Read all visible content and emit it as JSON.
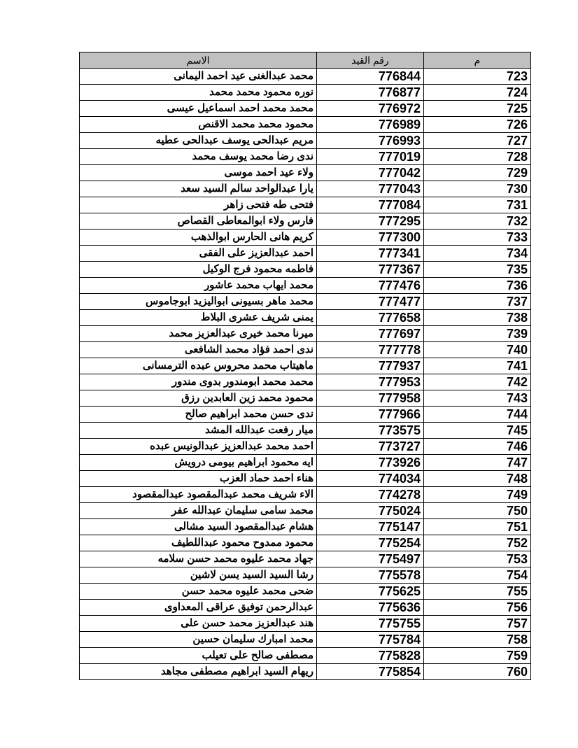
{
  "table": {
    "headers": {
      "name": "الاسم",
      "id": "رقم القيد",
      "serial": "م"
    },
    "header_color": "#c0c0c0",
    "rows": [
      {
        "name": "محمد عبدالغنى عيد احمد اليمانى",
        "id": "776844",
        "serial": "723"
      },
      {
        "name": "نوره محمود محمد محمد",
        "id": "776877",
        "serial": "724"
      },
      {
        "name": "محمد محمد احمد اسماعيل عيسى",
        "id": "776972",
        "serial": "725"
      },
      {
        "name": "محمود محمد محمد الاقنص",
        "id": "776989",
        "serial": "726"
      },
      {
        "name": "مريم عبدالحى يوسف عبدالحى عطيه",
        "id": "776993",
        "serial": "727"
      },
      {
        "name": "ندى رضا محمد يوسف محمد",
        "id": "777019",
        "serial": "728"
      },
      {
        "name": "ولاء عيد احمد موسى",
        "id": "777042",
        "serial": "729"
      },
      {
        "name": "يارا عبدالواحد سالم السيد سعد",
        "id": "777043",
        "serial": "730"
      },
      {
        "name": "فتحى طه فتحى زاهر",
        "id": "777084",
        "serial": "731"
      },
      {
        "name": "فارس ولاء ابوالمعاطى القصاص",
        "id": "777295",
        "serial": "732"
      },
      {
        "name": "كريم هانى الحارس ابوالذهب",
        "id": "777300",
        "serial": "733"
      },
      {
        "name": "احمد عبدالعزيز على الفقى",
        "id": "777341",
        "serial": "734"
      },
      {
        "name": "فاطمه محمود فرج الوكيل",
        "id": "777367",
        "serial": "735"
      },
      {
        "name": "محمد ايهاب محمد عاشور",
        "id": "777476",
        "serial": "736"
      },
      {
        "name": "محمد ماهر بسيونى ابواليزيد ابوجاموس",
        "id": "777477",
        "serial": "737"
      },
      {
        "name": "يمنى شريف عشرى البلاط",
        "id": "777658",
        "serial": "738"
      },
      {
        "name": "ميرنا محمد خيرى عبدالعزيز محمد",
        "id": "777697",
        "serial": "739"
      },
      {
        "name": "ندى احمد فؤاد محمد الشافعى",
        "id": "777778",
        "serial": "740"
      },
      {
        "name": "ماهيتاب محمد محروس عبده الترمسانى",
        "id": "777937",
        "serial": "741"
      },
      {
        "name": "محمد محمد ابومندور بدوى  مندور",
        "id": "777953",
        "serial": "742"
      },
      {
        "name": "محمود محمد زين العابدين رزق",
        "id": "777958",
        "serial": "743"
      },
      {
        "name": "ندى حسن محمد ابراهيم صالح",
        "id": "777966",
        "serial": "744"
      },
      {
        "name": "ميار رفعت عبدالله المشد",
        "id": "773575",
        "serial": "745"
      },
      {
        "name": "احمد محمد عبدالعزيز عبدالونيس عبده",
        "id": "773727",
        "serial": "746"
      },
      {
        "name": "ايه محمود ابراهيم بيومى درويش",
        "id": "773926",
        "serial": "747"
      },
      {
        "name": "هناء احمد حماد العزب",
        "id": "774034",
        "serial": "748"
      },
      {
        "name": "الاء شريف محمد عبدالمقصود عبدالمقصود",
        "id": "774278",
        "serial": "749"
      },
      {
        "name": "محمد سامى سليمان عبدالله عفر",
        "id": "775024",
        "serial": "750"
      },
      {
        "name": "هشام عبدالمقصود السيد مشالى",
        "id": "775147",
        "serial": "751"
      },
      {
        "name": "محمود ممدوح محمود عبداللطيف",
        "id": "775254",
        "serial": "752"
      },
      {
        "name": "جهاد محمد عليوه محمد حسن سلامه",
        "id": "775497",
        "serial": "753"
      },
      {
        "name": "رشا السيد السيد يسن لاشين",
        "id": "775578",
        "serial": "754"
      },
      {
        "name": "ضحى محمد عليوه محمد حسن",
        "id": "775625",
        "serial": "755"
      },
      {
        "name": "عبدالرحمن توفيق عراقى المعداوى",
        "id": "775636",
        "serial": "756"
      },
      {
        "name": "هند عبدالعزيز محمد حسن على",
        "id": "775755",
        "serial": "757"
      },
      {
        "name": "محمد امبارك سليمان حسين",
        "id": "775784",
        "serial": "758"
      },
      {
        "name": "مصطفى صالح على تعيلب",
        "id": "775828",
        "serial": "759"
      },
      {
        "name": "ريهام السيد ابراهيم مصطفى مجاهد",
        "id": "775854",
        "serial": "760"
      }
    ]
  }
}
